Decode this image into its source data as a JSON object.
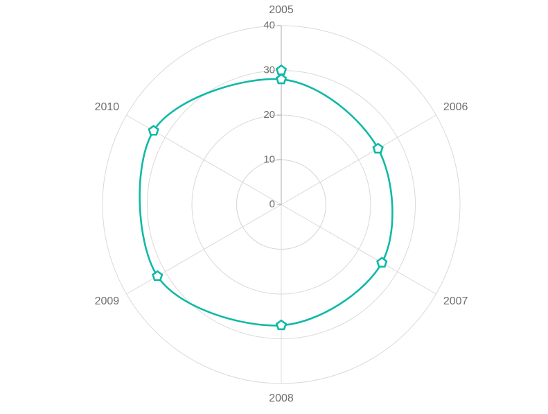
{
  "chart_data": {
    "type": "line",
    "subtype": "radar",
    "categories": [
      "2005",
      "2006",
      "2007",
      "2008",
      "2009",
      "2010"
    ],
    "series": [
      {
        "values": [
          28,
          25,
          26,
          27,
          32,
          33
        ],
        "color": "#0fb9a6",
        "marker": "pentagon"
      }
    ],
    "extra_points": [
      {
        "category": "2005",
        "value": 30
      }
    ],
    "rlim": [
      0,
      40
    ],
    "r_ticks": [
      0,
      10,
      20,
      30,
      40
    ],
    "grid": true,
    "smooth": true,
    "colors": {
      "grid": "#d9d9d9",
      "axis": "#a8a8a8",
      "text": "#6e6e6e"
    }
  }
}
